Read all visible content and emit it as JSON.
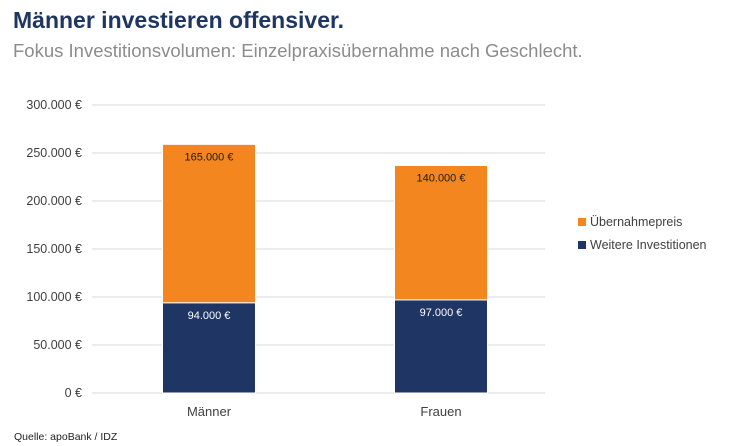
{
  "header": {
    "title": "Männer investieren offensiver.",
    "subtitle": "Fokus Investitionsvolumen: Einzelpraxisübernahme nach Geschlecht."
  },
  "footer": {
    "source": "Quelle: apoBank / IDZ"
  },
  "colors": {
    "uebernahmepreis": "#f4861f",
    "weitere_investitionen": "#1f3564",
    "grid": "#d9d9d9",
    "axis_text": "#404040"
  },
  "chart_data": {
    "type": "bar",
    "stacked": true,
    "categories": [
      "Männer",
      "Frauen"
    ],
    "series": [
      {
        "name": "Weitere Investitionen",
        "values": [
          94000,
          97000
        ],
        "labels": [
          "94.000 €",
          "97.000 €"
        ]
      },
      {
        "name": "Übernahmepreis",
        "values": [
          165000,
          140000
        ],
        "labels": [
          "165.000 €",
          "140.000 €"
        ]
      }
    ],
    "yticks": [
      0,
      50000,
      100000,
      150000,
      200000,
      250000,
      300000
    ],
    "ytick_labels": [
      "0 €",
      "50.000 €",
      "100.000 €",
      "150.000 €",
      "200.000 €",
      "250.000 €",
      "300.000 €"
    ],
    "ylim": [
      0,
      300000
    ],
    "grid": true,
    "legend": [
      "Übernahmepreis",
      "Weitere Investitionen"
    ],
    "legend_position": "right"
  }
}
